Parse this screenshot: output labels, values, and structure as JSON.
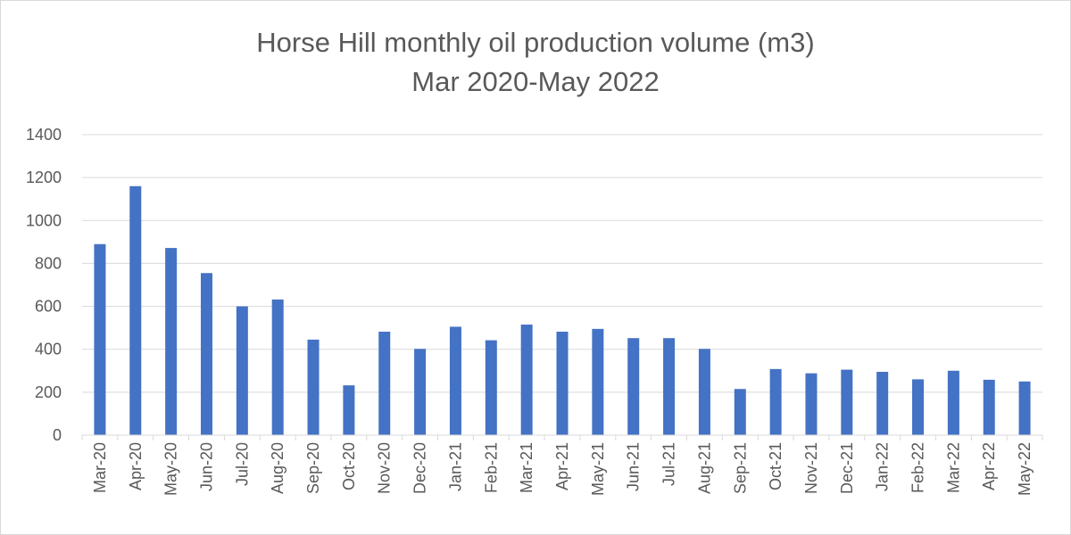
{
  "chart_data": {
    "type": "bar",
    "title": "Horse Hill monthly oil production volume (m3)",
    "subtitle": "Mar 2020-May 2022",
    "xlabel": "",
    "ylabel": "",
    "ylim": [
      0,
      1400
    ],
    "yticks": [
      0,
      200,
      400,
      600,
      800,
      1000,
      1200,
      1400
    ],
    "grid": true,
    "legend": "none",
    "bar_color": "#4472c4",
    "categories": [
      "Mar-20",
      "Apr-20",
      "May-20",
      "Jun-20",
      "Jul-20",
      "Aug-20",
      "Sep-20",
      "Oct-20",
      "Nov-20",
      "Dec-20",
      "Jan-21",
      "Feb-21",
      "Mar-21",
      "Apr-21",
      "May-21",
      "Jun-21",
      "Jul-21",
      "Aug-21",
      "Sep-21",
      "Oct-21",
      "Nov-21",
      "Dec-21",
      "Jan-22",
      "Feb-22",
      "Mar-22",
      "Apr-22",
      "May-22"
    ],
    "values": [
      890,
      1160,
      872,
      755,
      600,
      632,
      445,
      232,
      482,
      402,
      505,
      442,
      515,
      482,
      495,
      452,
      452,
      402,
      215,
      308,
      288,
      305,
      295,
      260,
      300,
      258,
      250
    ]
  }
}
